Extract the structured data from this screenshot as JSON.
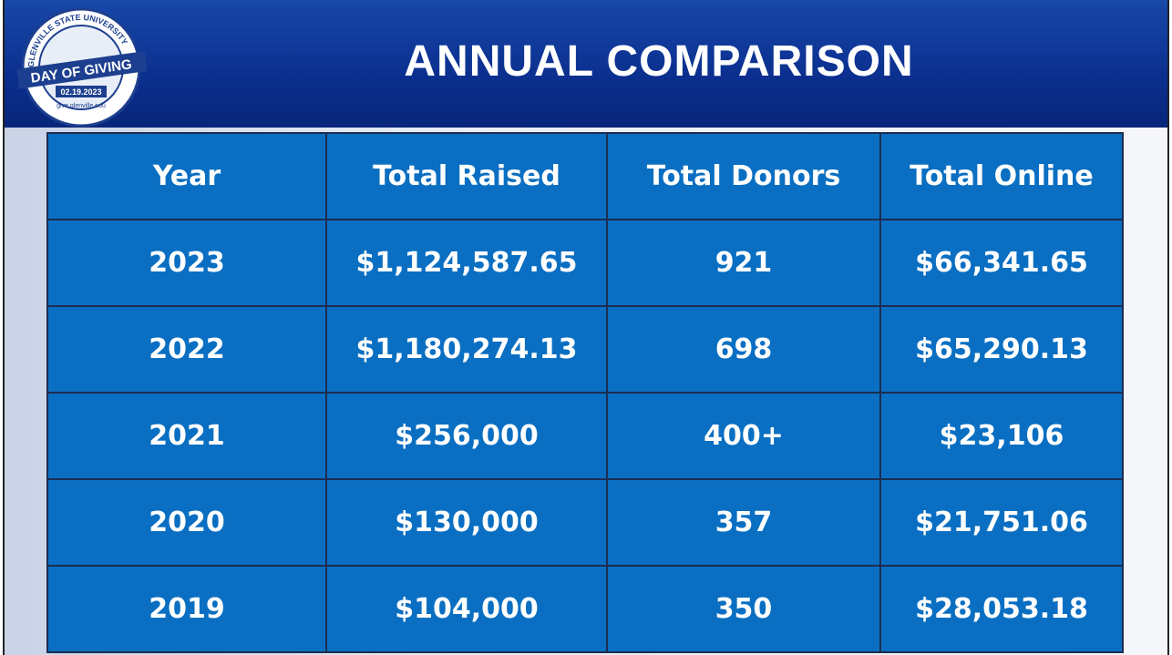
{
  "header": {
    "title": "ANNUAL COMPARISON",
    "logo": {
      "arc_text": "GLENVILLE STATE UNIVERSITY",
      "banner": "DAY OF GIVING",
      "date": "02.19.2023",
      "url": "give.glenville.edu"
    }
  },
  "table": {
    "columns": [
      "Year",
      "Total Raised",
      "Total Donors",
      "Total Online"
    ],
    "rows": [
      [
        "2023",
        "$1,124,587.65",
        "921",
        "$66,341.65"
      ],
      [
        "2022",
        "$1,180,274.13",
        "698",
        "$65,290.13"
      ],
      [
        "2021",
        "$256,000",
        "400+",
        "$23,106"
      ],
      [
        "2020",
        "$130,000",
        "357",
        "$21,751.06"
      ],
      [
        "2019",
        "$104,000",
        "350",
        "$28,053.18"
      ]
    ]
  }
}
